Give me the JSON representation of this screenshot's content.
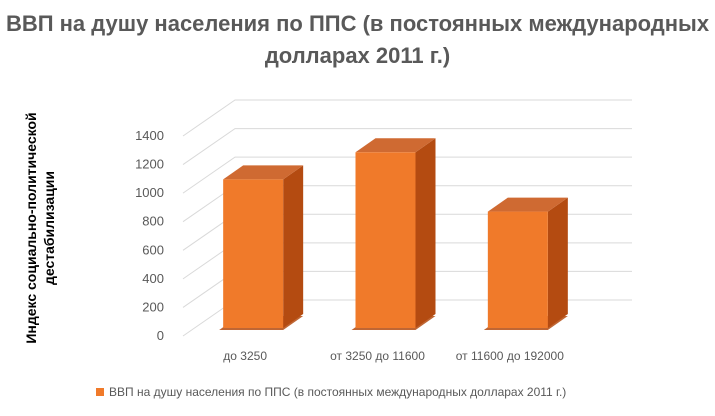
{
  "chart_data": {
    "type": "bar",
    "title": "ВВП на душу населения по ППС (в постоянных международных долларах 2011 г.)",
    "xlabel": "",
    "ylabel": "Индекс социально-политической дестабилизации",
    "categories": [
      "до 3250",
      "от 3250 до 11600",
      "от 11600 до 192000"
    ],
    "series": [
      {
        "name": "ВВП на душу населения по ППС (в постоянных международных долларах 2011 г.)",
        "values": [
          1040,
          1230,
          815
        ]
      }
    ],
    "ylim": [
      0,
      1400
    ],
    "yticks": [
      0,
      200,
      400,
      600,
      800,
      1000,
      1200,
      1400
    ],
    "ytick_labels": [
      "0",
      "200",
      "400",
      "600",
      "800",
      "1000",
      "1200",
      "1400"
    ],
    "grid": true,
    "legend": "bottom",
    "colors": {
      "bar_front": "#f07a2a",
      "bar_side": "#b44b11",
      "bar_top": "#cf6a32",
      "grid": "#d9d9d9",
      "text": "#595959"
    }
  }
}
